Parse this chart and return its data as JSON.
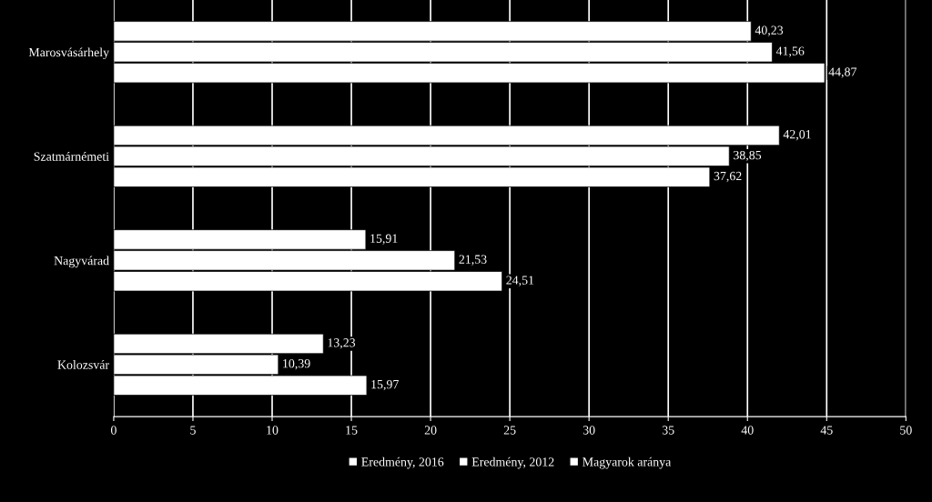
{
  "chart_data": {
    "type": "bar",
    "orientation": "horizontal",
    "categories": [
      "Marosvásárhely",
      "Szatmárnémeti",
      "Nagyvárad",
      "Kolozsvár"
    ],
    "series": [
      {
        "name": "Eredmény, 2016",
        "color": "#ffffff",
        "values": [
          40.23,
          42.01,
          15.91,
          13.23
        ],
        "value_labels": [
          "40,23",
          "42,01",
          "15,91",
          "13,23"
        ]
      },
      {
        "name": "Eredmény, 2012",
        "color": "#ffffff",
        "values": [
          41.56,
          38.85,
          21.53,
          10.39
        ],
        "value_labels": [
          "41,56",
          "38,85",
          "21,53",
          "10,39"
        ]
      },
      {
        "name": "Magyarok aránya",
        "color": "#ffffff",
        "values": [
          44.87,
          37.62,
          24.51,
          15.97
        ],
        "value_labels": [
          "44,87",
          "37,62",
          "24,51",
          "15,97"
        ]
      }
    ],
    "xlim": [
      0,
      50
    ],
    "xticks": [
      0,
      5,
      10,
      15,
      20,
      25,
      30,
      35,
      40,
      45,
      50
    ],
    "grid": "x",
    "legend": "bottom"
  }
}
